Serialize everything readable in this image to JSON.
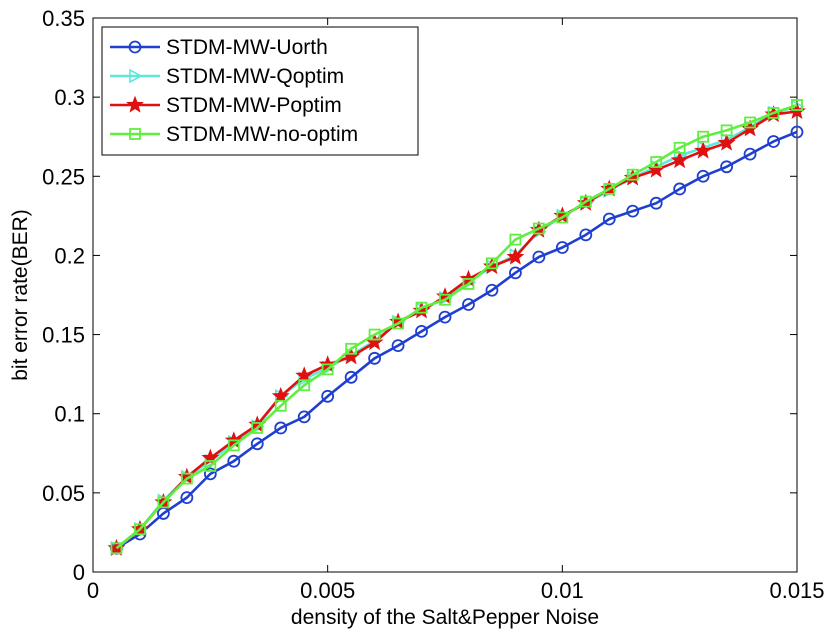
{
  "chart_data": {
    "type": "line",
    "title": "",
    "xlabel": "density of the Salt&Pepper Noise",
    "ylabel": "bit error rate(BER)",
    "xlim": [
      0,
      0.015
    ],
    "ylim": [
      0,
      0.35
    ],
    "grid": false,
    "legend_position": "top-left",
    "x_ticks": [
      0,
      0.005,
      0.01,
      0.015
    ],
    "x_tick_labels": [
      "0",
      "0.005",
      "0.01",
      "0.015"
    ],
    "y_ticks": [
      0,
      0.05,
      0.1,
      0.15,
      0.2,
      0.25,
      0.3,
      0.35
    ],
    "y_tick_labels": [
      "0",
      "0.05",
      "0.1",
      "0.15",
      "0.2",
      "0.25",
      "0.3",
      "0.35"
    ],
    "x": [
      0.0005,
      0.001,
      0.0015,
      0.002,
      0.0025,
      0.003,
      0.0035,
      0.004,
      0.0045,
      0.005,
      0.0055,
      0.006,
      0.0065,
      0.007,
      0.0075,
      0.008,
      0.0085,
      0.009,
      0.0095,
      0.01,
      0.0105,
      0.011,
      0.0115,
      0.012,
      0.0125,
      0.013,
      0.0135,
      0.014,
      0.0145,
      0.015
    ],
    "series": [
      {
        "name": "STDM-MW-Uorth",
        "color": "#1f3fd0",
        "marker": "circle",
        "values": [
          0.015,
          0.024,
          0.037,
          0.047,
          0.062,
          0.07,
          0.081,
          0.091,
          0.098,
          0.111,
          0.123,
          0.135,
          0.143,
          0.152,
          0.161,
          0.169,
          0.178,
          0.189,
          0.199,
          0.205,
          0.213,
          0.223,
          0.228,
          0.233,
          0.242,
          0.25,
          0.256,
          0.264,
          0.272,
          0.278
        ]
      },
      {
        "name": "STDM-MW-Qoptim",
        "color": "#5ee8dc",
        "marker": "triangle-right",
        "values": [
          0.015,
          0.027,
          0.045,
          0.06,
          0.07,
          0.082,
          0.092,
          0.111,
          0.122,
          0.129,
          0.137,
          0.146,
          0.158,
          0.166,
          0.173,
          0.183,
          0.193,
          0.2,
          0.215,
          0.225,
          0.233,
          0.241,
          0.249,
          0.256,
          0.263,
          0.268,
          0.273,
          0.281,
          0.29,
          0.294
        ]
      },
      {
        "name": "STDM-MW-Poptim",
        "color": "#e01010",
        "marker": "star",
        "values": [
          0.015,
          0.027,
          0.044,
          0.06,
          0.072,
          0.083,
          0.093,
          0.111,
          0.124,
          0.131,
          0.136,
          0.145,
          0.158,
          0.165,
          0.174,
          0.185,
          0.193,
          0.199,
          0.216,
          0.225,
          0.233,
          0.242,
          0.249,
          0.254,
          0.26,
          0.266,
          0.271,
          0.28,
          0.289,
          0.291
        ]
      },
      {
        "name": "STDM-MW-no-optim",
        "color": "#60ee40",
        "marker": "square",
        "values": [
          0.015,
          0.027,
          0.044,
          0.059,
          0.067,
          0.08,
          0.091,
          0.105,
          0.118,
          0.128,
          0.141,
          0.15,
          0.157,
          0.167,
          0.172,
          0.182,
          0.195,
          0.21,
          0.217,
          0.224,
          0.234,
          0.242,
          0.251,
          0.259,
          0.268,
          0.275,
          0.279,
          0.284,
          0.29,
          0.295
        ]
      }
    ]
  }
}
